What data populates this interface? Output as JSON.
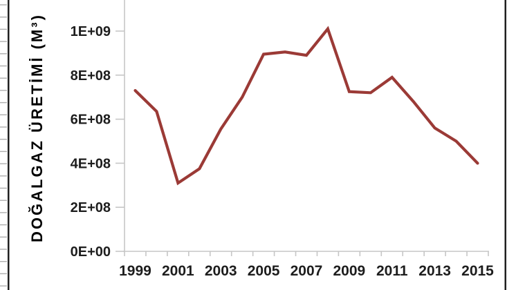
{
  "background": "#FFFFFF",
  "frame": {
    "left_ruler": {
      "color": "#1F1F1F",
      "tick_color": "#ADADAD"
    },
    "right_border_color": "#1F1F1F"
  },
  "chart_data": {
    "type": "line",
    "title": "",
    "xlabel": "",
    "ylabel": "DOĞALGAZ ÜRETİMİ (M³)",
    "categories": [
      "1999",
      "2000",
      "2001",
      "2002",
      "2003",
      "2004",
      "2005",
      "2006",
      "2007",
      "2008",
      "2009",
      "2010",
      "2011",
      "2012",
      "2013",
      "2014",
      "2015"
    ],
    "values": [
      730000000,
      635000000,
      310000000,
      375000000,
      555000000,
      700000000,
      895000000,
      905000000,
      890000000,
      1010000000,
      725000000,
      720000000,
      790000000,
      680000000,
      560000000,
      500000000,
      400000000
    ],
    "x_tick_labels": [
      "1999",
      "2001",
      "2003",
      "2005",
      "2007",
      "2009",
      "2011",
      "2013",
      "2015"
    ],
    "y_tick_labels": [
      "0E+00",
      "2E+08",
      "4E+08",
      "6E+08",
      "8E+08",
      "1E+09"
    ],
    "ylim": [
      0,
      1000000000
    ],
    "y_major_step": 200000000,
    "grid": false,
    "legend": "none",
    "line_color": "#9B3A36",
    "axis_color": "#C6C6C6",
    "tick_label_color": "#1D1D1D",
    "axis_title_color": "#000000"
  }
}
